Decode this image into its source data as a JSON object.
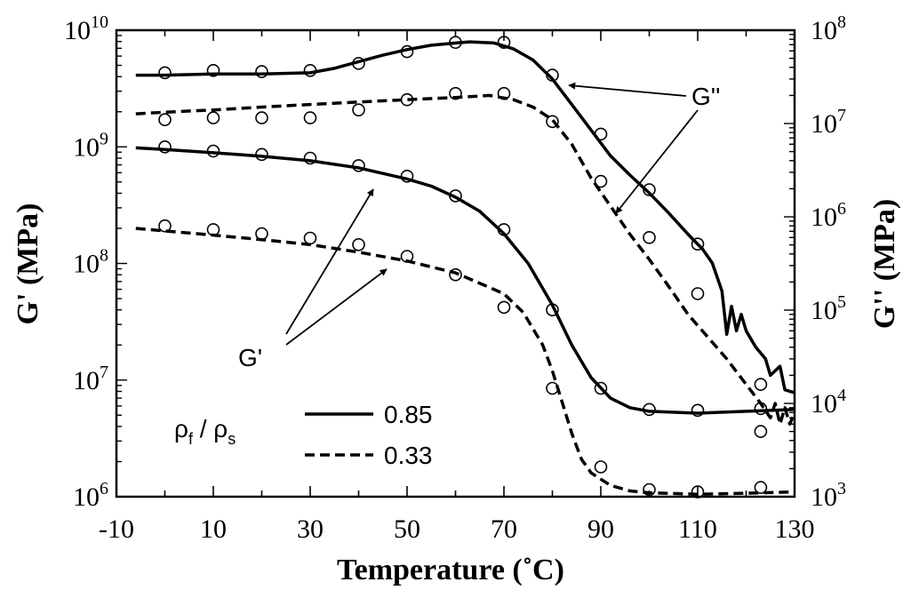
{
  "chart_data": {
    "type": "line",
    "xlabel": "Temperature (˚C)",
    "ylabel_left": "G' (MPa)",
    "ylabel_right": "G'' (MPa)",
    "xlim": [
      -10,
      130
    ],
    "ylim_left": [
      1000000,
      10000000000
    ],
    "ylim_right": [
      1000,
      100000000
    ],
    "y_scale": "log",
    "grid": false,
    "x_ticks": [
      "-10",
      "10",
      "30",
      "50",
      "70",
      "90",
      "110",
      "130"
    ],
    "y_left_ticks": [
      {
        "base": "10",
        "exp": "6",
        "value": 1000000
      },
      {
        "base": "10",
        "exp": "7",
        "value": 10000000
      },
      {
        "base": "10",
        "exp": "8",
        "value": 100000000
      },
      {
        "base": "10",
        "exp": "9",
        "value": 1000000000
      },
      {
        "base": "10",
        "exp": "10",
        "value": 10000000000
      }
    ],
    "y_right_ticks": [
      {
        "base": "10",
        "exp": "3",
        "value": 1000
      },
      {
        "base": "10",
        "exp": "4",
        "value": 10000
      },
      {
        "base": "10",
        "exp": "5",
        "value": 100000
      },
      {
        "base": "10",
        "exp": "6",
        "value": 1000000
      },
      {
        "base": "10",
        "exp": "7",
        "value": 10000000
      },
      {
        "base": "10",
        "exp": "8",
        "value": 100000000
      }
    ],
    "series": [
      {
        "name": "0.85",
        "axis": "right",
        "style": "solid",
        "curve": [
          [
            -6,
            33000000.0
          ],
          [
            0,
            33000000.0
          ],
          [
            10,
            34000000.0
          ],
          [
            20,
            34000000.0
          ],
          [
            30,
            35000000.0
          ],
          [
            35,
            39000000.0
          ],
          [
            40,
            46000000.0
          ],
          [
            45,
            54000000.0
          ],
          [
            50,
            62000000.0
          ],
          [
            55,
            69000000.0
          ],
          [
            60,
            73000000.0
          ],
          [
            63,
            75000000.0
          ],
          [
            68,
            73000000.0
          ],
          [
            72,
            63000000.0
          ],
          [
            76,
            48000000.0
          ],
          [
            80,
            30000000.0
          ],
          [
            84,
            16000000.0
          ],
          [
            88,
            8500000.0
          ],
          [
            92,
            4500000.0
          ],
          [
            96,
            2800000.0
          ],
          [
            100,
            1800000.0
          ],
          [
            104,
            1100000.0
          ],
          [
            108,
            650000.0
          ],
          [
            111,
            450000.0
          ],
          [
            113,
            320000.0
          ],
          [
            115,
            160000.0
          ],
          [
            116,
            55000.0
          ],
          [
            117,
            110000.0
          ],
          [
            118,
            60000.0
          ],
          [
            119,
            90000.0
          ],
          [
            120,
            60000.0
          ],
          [
            122,
            40000.0
          ],
          [
            124,
            30000.0
          ],
          [
            125,
            20000.0
          ],
          [
            127,
            25000.0
          ],
          [
            128,
            14000.0
          ],
          [
            130,
            13000.0
          ]
        ],
        "markers": [
          [
            0,
            35000000.0
          ],
          [
            10,
            37000000.0
          ],
          [
            20,
            36000000.0
          ],
          [
            30,
            37000000.0
          ],
          [
            40,
            44000000.0
          ],
          [
            50,
            59000000.0
          ],
          [
            60,
            74000000.0
          ],
          [
            70,
            74000000.0
          ],
          [
            80,
            33000000.0
          ],
          [
            90,
            7700000.0
          ],
          [
            100,
            1950000.0
          ],
          [
            110,
            510000.0
          ],
          [
            123,
            16000.0
          ]
        ]
      },
      {
        "name": "0.33",
        "axis": "right",
        "style": "dashed",
        "curve": [
          [
            -6,
            12700000.0
          ],
          [
            0,
            13200000.0
          ],
          [
            10,
            14000000.0
          ],
          [
            20,
            15000000.0
          ],
          [
            30,
            16000000.0
          ],
          [
            40,
            17000000.0
          ],
          [
            50,
            18000000.0
          ],
          [
            60,
            19000000.0
          ],
          [
            67,
            20000000.0
          ],
          [
            72,
            18000000.0
          ],
          [
            76,
            15000000.0
          ],
          [
            80,
            11000000.0
          ],
          [
            84,
            6000000.0
          ],
          [
            88,
            2600000.0
          ],
          [
            92,
            1300000.0
          ],
          [
            96,
            650000.0
          ],
          [
            100,
            350000.0
          ],
          [
            104,
            180000.0
          ],
          [
            108,
            90000.0
          ],
          [
            112,
            52000.0
          ],
          [
            116,
            30000.0
          ],
          [
            120,
            16000.0
          ],
          [
            123,
            10000.0
          ],
          [
            125,
            7000.0
          ],
          [
            126,
            10000.0
          ],
          [
            127,
            6000.0
          ],
          [
            128,
            9000.0
          ],
          [
            129,
            6000.0
          ],
          [
            130,
            8000.0
          ]
        ],
        "markers": [
          [
            0,
            11000000.0
          ],
          [
            10,
            11500000.0
          ],
          [
            20,
            11500000.0
          ],
          [
            30,
            11500000.0
          ],
          [
            40,
            14000000.0
          ],
          [
            50,
            18000000.0
          ],
          [
            60,
            21000000.0
          ],
          [
            70,
            21000000.0
          ],
          [
            80,
            10500000.0
          ],
          [
            90,
            2400000.0
          ],
          [
            100,
            600000.0
          ],
          [
            110,
            150000.0
          ],
          [
            123,
            5000.0
          ]
        ]
      },
      {
        "name": "0.85",
        "axis": "left",
        "style": "solid",
        "curve": [
          [
            -6,
            980000000.0
          ],
          [
            0,
            950000000.0
          ],
          [
            10,
            890000000.0
          ],
          [
            20,
            830000000.0
          ],
          [
            30,
            760000000.0
          ],
          [
            40,
            660000000.0
          ],
          [
            50,
            530000000.0
          ],
          [
            55,
            460000000.0
          ],
          [
            60,
            370000000.0
          ],
          [
            65,
            280000000.0
          ],
          [
            70,
            180000000.0
          ],
          [
            75,
            100000000.0
          ],
          [
            80,
            44000000.0
          ],
          [
            84,
            20000000.0
          ],
          [
            88,
            10500000.0
          ],
          [
            92,
            7000000.0
          ],
          [
            96,
            5800000.0
          ],
          [
            100,
            5400000.0
          ],
          [
            110,
            5200000.0
          ],
          [
            120,
            5400000.0
          ],
          [
            130,
            5600000.0
          ]
        ],
        "markers": [
          [
            0,
            1000000000.0
          ],
          [
            10,
            920000000.0
          ],
          [
            20,
            860000000.0
          ],
          [
            30,
            800000000.0
          ],
          [
            40,
            690000000.0
          ],
          [
            50,
            560000000.0
          ],
          [
            60,
            380000000.0
          ],
          [
            70,
            195000000.0
          ],
          [
            80,
            40000000.0
          ],
          [
            90,
            8500000.0
          ],
          [
            100,
            5600000.0
          ],
          [
            110,
            5500000.0
          ],
          [
            123,
            5700000.0
          ]
        ]
      },
      {
        "name": "0.33",
        "axis": "left",
        "style": "dashed",
        "curve": [
          [
            -6,
            200000000.0
          ],
          [
            0,
            190000000.0
          ],
          [
            10,
            175000000.0
          ],
          [
            20,
            160000000.0
          ],
          [
            30,
            145000000.0
          ],
          [
            40,
            125000000.0
          ],
          [
            50,
            105000000.0
          ],
          [
            60,
            83000000.0
          ],
          [
            66,
            65000000.0
          ],
          [
            70,
            55000000.0
          ],
          [
            74,
            38000000.0
          ],
          [
            78,
            20000000.0
          ],
          [
            80,
            12000000.0
          ],
          [
            82,
            6500000.0
          ],
          [
            84,
            3500000.0
          ],
          [
            86,
            2100000.0
          ],
          [
            88,
            1600000.0
          ],
          [
            92,
            1250000.0
          ],
          [
            96,
            1120000.0
          ],
          [
            100,
            1080000.0
          ],
          [
            110,
            1050000.0
          ],
          [
            120,
            1070000.0
          ],
          [
            130,
            1100000.0
          ]
        ],
        "markers": [
          [
            0,
            210000000.0
          ],
          [
            10,
            195000000.0
          ],
          [
            20,
            180000000.0
          ],
          [
            30,
            165000000.0
          ],
          [
            40,
            145000000.0
          ],
          [
            50,
            115000000.0
          ],
          [
            60,
            80000000.0
          ],
          [
            70,
            42000000.0
          ],
          [
            80,
            8500000.0
          ],
          [
            90,
            1800000.0
          ],
          [
            100,
            1150000.0
          ],
          [
            110,
            1100000.0
          ],
          [
            123,
            1200000.0
          ]
        ]
      }
    ],
    "legend": {
      "title_main": "ρ",
      "title_sub_f": "f",
      "title_sep": " / ",
      "title_main2": "ρ",
      "title_sub_s": "s",
      "entries": [
        {
          "label": "0.85",
          "style": "solid"
        },
        {
          "label": "0.33",
          "style": "dashed"
        }
      ],
      "placement": "bottom-left"
    },
    "annotations": [
      {
        "text": "G''",
        "points_to": "G'' curves"
      },
      {
        "text": "G'",
        "points_to": "G' curves"
      }
    ]
  }
}
